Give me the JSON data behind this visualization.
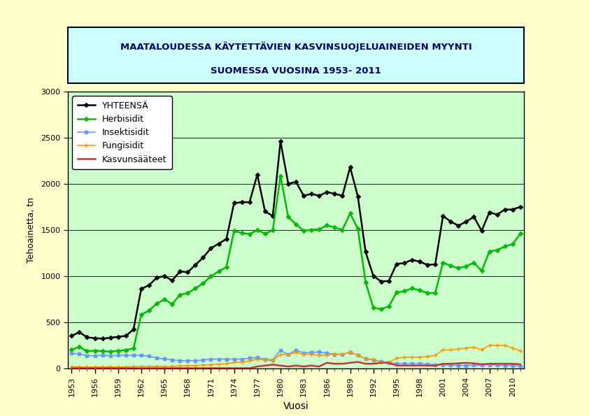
{
  "title_line1": "MAATALOUDESSA KÄYTETTÄVIEN KASVINSUOJELUAINEIDEN MYYNTI",
  "title_line2": "SUOMESSA VUOSINA 1953- 2011",
  "xlabel": "Vuosi",
  "ylabel": "Tehoainetta, tn",
  "background_outer": "#FFFFCC",
  "background_plot": "#CCFFCC",
  "title_box_bg": "#CCFFFF",
  "ylim": [
    0,
    3000
  ],
  "yticks": [
    0,
    500,
    1000,
    1500,
    2000,
    2500,
    3000
  ],
  "legend_labels": [
    "YHTEENSÄ",
    "Herbisidit",
    "Insektisidit",
    "Fungisidit",
    "Kasvunsääteet"
  ],
  "line_colors": [
    "#000000",
    "#00BB00",
    "#6699FF",
    "#FF9900",
    "#CC3333"
  ],
  "years": [
    1953,
    1954,
    1955,
    1956,
    1957,
    1958,
    1959,
    1960,
    1961,
    1962,
    1963,
    1964,
    1965,
    1966,
    1967,
    1968,
    1969,
    1970,
    1971,
    1972,
    1973,
    1974,
    1975,
    1976,
    1977,
    1978,
    1979,
    1980,
    1981,
    1982,
    1983,
    1984,
    1985,
    1986,
    1987,
    1988,
    1989,
    1990,
    1991,
    1992,
    1993,
    1994,
    1995,
    1996,
    1997,
    1998,
    1999,
    2000,
    2001,
    2002,
    2003,
    2004,
    2005,
    2006,
    2007,
    2008,
    2009,
    2010,
    2011
  ],
  "yhteensa": [
    350,
    390,
    335,
    325,
    320,
    330,
    340,
    350,
    420,
    860,
    900,
    980,
    1000,
    950,
    1050,
    1040,
    1120,
    1200,
    1300,
    1350,
    1400,
    1790,
    1800,
    1800,
    2100,
    1700,
    1650,
    2460,
    2000,
    2020,
    1870,
    1890,
    1870,
    1910,
    1890,
    1870,
    2180,
    1860,
    1260,
    1000,
    940,
    945,
    1130,
    1140,
    1175,
    1155,
    1120,
    1125,
    1650,
    1590,
    1545,
    1590,
    1640,
    1490,
    1690,
    1665,
    1720,
    1720,
    1750
  ],
  "herbisidit": [
    200,
    230,
    185,
    190,
    185,
    180,
    190,
    195,
    215,
    580,
    625,
    700,
    745,
    695,
    795,
    815,
    865,
    920,
    995,
    1050,
    1095,
    1490,
    1465,
    1455,
    1495,
    1460,
    1495,
    2085,
    1640,
    1560,
    1490,
    1500,
    1505,
    1550,
    1525,
    1500,
    1680,
    1510,
    930,
    655,
    640,
    670,
    820,
    835,
    865,
    845,
    815,
    815,
    1145,
    1110,
    1085,
    1105,
    1145,
    1055,
    1265,
    1280,
    1320,
    1345,
    1460
  ],
  "insektisidit": [
    160,
    155,
    135,
    135,
    138,
    135,
    138,
    140,
    138,
    140,
    130,
    110,
    100,
    90,
    80,
    80,
    80,
    88,
    98,
    98,
    98,
    98,
    98,
    108,
    115,
    98,
    88,
    195,
    148,
    195,
    165,
    170,
    175,
    162,
    152,
    148,
    172,
    142,
    102,
    88,
    72,
    58,
    52,
    48,
    48,
    48,
    43,
    38,
    33,
    32,
    28,
    28,
    32,
    32,
    38,
    32,
    28,
    28,
    22
  ],
  "fungisidit": [
    15,
    15,
    12,
    12,
    14,
    14,
    12,
    14,
    17,
    20,
    20,
    20,
    20,
    22,
    24,
    28,
    28,
    33,
    38,
    43,
    48,
    62,
    68,
    78,
    98,
    88,
    82,
    148,
    148,
    170,
    148,
    152,
    138,
    142,
    152,
    152,
    172,
    142,
    103,
    98,
    62,
    62,
    108,
    118,
    118,
    118,
    128,
    138,
    198,
    198,
    208,
    218,
    228,
    198,
    248,
    248,
    248,
    218,
    188
  ],
  "kasvunsaateet": [
    0,
    0,
    0,
    0,
    0,
    0,
    0,
    0,
    0,
    0,
    0,
    0,
    0,
    0,
    0,
    0,
    0,
    0,
    0,
    0,
    0,
    0,
    0,
    0,
    18,
    28,
    38,
    28,
    18,
    28,
    18,
    28,
    18,
    58,
    48,
    48,
    58,
    68,
    48,
    48,
    58,
    58,
    28,
    28,
    28,
    28,
    28,
    28,
    48,
    48,
    52,
    58,
    52,
    42,
    48,
    48,
    48,
    48,
    42
  ],
  "xtick_years": [
    1953,
    1956,
    1959,
    1962,
    1965,
    1968,
    1971,
    1974,
    1977,
    1980,
    1983,
    1986,
    1989,
    1992,
    1995,
    1998,
    2001,
    2004,
    2007,
    2010
  ]
}
